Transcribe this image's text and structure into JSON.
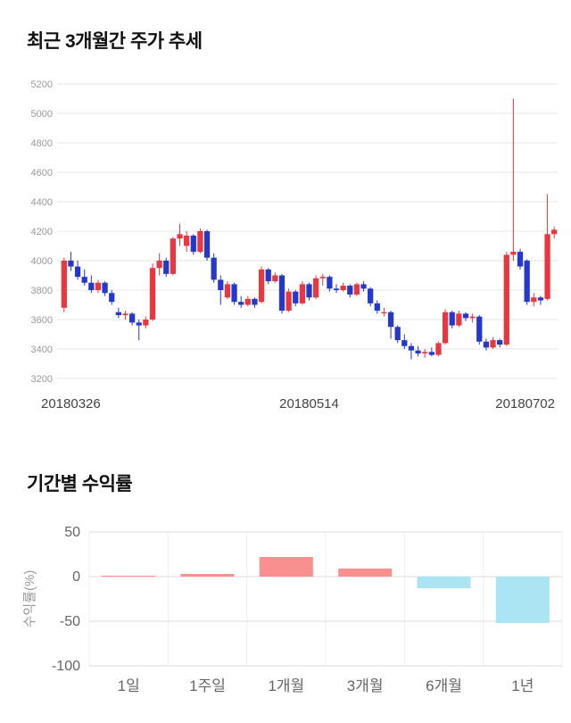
{
  "sections": {
    "price_trend": {
      "title": "최근 3개월간 주가 추세"
    },
    "returns": {
      "title": "기간별 수익률"
    }
  },
  "chart_data": [
    {
      "type": "candlestick",
      "title": "최근 3개월간 주가 추세",
      "ylim": [
        3200,
        5200
      ],
      "yticks": [
        3200,
        3400,
        3600,
        3800,
        4000,
        4200,
        4400,
        4600,
        4800,
        5000,
        5200
      ],
      "xtick_labels": [
        "20180326",
        "20180514",
        "20180702"
      ],
      "grid": "horizontal",
      "up_color": "#e8373f",
      "down_color": "#2439cb",
      "candles": [
        [
          3680,
          4020,
          3650,
          4000
        ],
        [
          4000,
          4060,
          3930,
          3960
        ],
        [
          3960,
          4000,
          3870,
          3890
        ],
        [
          3890,
          3940,
          3830,
          3850
        ],
        [
          3850,
          3900,
          3780,
          3800
        ],
        [
          3800,
          3870,
          3780,
          3850
        ],
        [
          3850,
          3860,
          3760,
          3780
        ],
        [
          3780,
          3800,
          3700,
          3720
        ],
        [
          3650,
          3680,
          3610,
          3630
        ],
        [
          3630,
          3660,
          3600,
          3640
        ],
        [
          3640,
          3650,
          3560,
          3580
        ],
        [
          3580,
          3600,
          3460,
          3560
        ],
        [
          3560,
          3620,
          3540,
          3600
        ],
        [
          3600,
          3980,
          3590,
          3950
        ],
        [
          3950,
          4050,
          3900,
          4000
        ],
        [
          4000,
          4020,
          3890,
          3910
        ],
        [
          3910,
          4160,
          3900,
          4150
        ],
        [
          4150,
          4250,
          4100,
          4180
        ],
        [
          4100,
          4200,
          4060,
          4170
        ],
        [
          4170,
          4180,
          4040,
          4060
        ],
        [
          4060,
          4220,
          4050,
          4200
        ],
        [
          4200,
          4210,
          4000,
          4020
        ],
        [
          4020,
          4050,
          3850,
          3870
        ],
        [
          3870,
          3900,
          3700,
          3800
        ],
        [
          3750,
          3860,
          3740,
          3840
        ],
        [
          3840,
          3850,
          3700,
          3720
        ],
        [
          3720,
          3760,
          3680,
          3700
        ],
        [
          3700,
          3760,
          3690,
          3740
        ],
        [
          3740,
          3750,
          3680,
          3700
        ],
        [
          3720,
          3960,
          3710,
          3940
        ],
        [
          3940,
          3950,
          3840,
          3860
        ],
        [
          3860,
          3920,
          3850,
          3900
        ],
        [
          3900,
          3910,
          3640,
          3660
        ],
        [
          3660,
          3810,
          3650,
          3790
        ],
        [
          3790,
          3800,
          3690,
          3710
        ],
        [
          3710,
          3860,
          3700,
          3840
        ],
        [
          3840,
          3850,
          3730,
          3750
        ],
        [
          3750,
          3900,
          3740,
          3880
        ],
        [
          3880,
          3910,
          3830,
          3890
        ],
        [
          3890,
          3900,
          3790,
          3810
        ],
        [
          3810,
          3840,
          3780,
          3800
        ],
        [
          3800,
          3850,
          3790,
          3830
        ],
        [
          3830,
          3840,
          3750,
          3770
        ],
        [
          3770,
          3850,
          3760,
          3840
        ],
        [
          3840,
          3860,
          3790,
          3810
        ],
        [
          3810,
          3820,
          3690,
          3710
        ],
        [
          3710,
          3730,
          3640,
          3660
        ],
        [
          3650,
          3680,
          3620,
          3650
        ],
        [
          3650,
          3660,
          3470,
          3550
        ],
        [
          3550,
          3560,
          3440,
          3460
        ],
        [
          3460,
          3500,
          3400,
          3420
        ],
        [
          3420,
          3440,
          3330,
          3390
        ],
        [
          3390,
          3420,
          3350,
          3370
        ],
        [
          3370,
          3400,
          3340,
          3380
        ],
        [
          3380,
          3410,
          3350,
          3360
        ],
        [
          3360,
          3450,
          3350,
          3440
        ],
        [
          3440,
          3670,
          3430,
          3650
        ],
        [
          3650,
          3660,
          3540,
          3560
        ],
        [
          3560,
          3660,
          3550,
          3640
        ],
        [
          3640,
          3650,
          3590,
          3610
        ],
        [
          3610,
          3640,
          3580,
          3620
        ],
        [
          3620,
          3630,
          3430,
          3450
        ],
        [
          3450,
          3470,
          3390,
          3410
        ],
        [
          3410,
          3480,
          3400,
          3460
        ],
        [
          3460,
          3470,
          3410,
          3430
        ],
        [
          3430,
          4060,
          3420,
          4040
        ],
        [
          4040,
          5100,
          4000,
          4060
        ],
        [
          4060,
          4080,
          3940,
          3960
        ],
        [
          4000,
          4010,
          3700,
          3720
        ],
        [
          3720,
          3780,
          3690,
          3750
        ],
        [
          3750,
          3760,
          3700,
          3730
        ],
        [
          3740,
          4450,
          3730,
          4180
        ],
        [
          4180,
          4230,
          4150,
          4210
        ]
      ]
    },
    {
      "type": "bar",
      "title": "기간별 수익률",
      "ylabel": "수익률(%)",
      "categories": [
        "1일",
        "1주일",
        "1개월",
        "3개월",
        "6개월",
        "1년"
      ],
      "values": [
        1,
        3,
        22,
        9,
        -13,
        -52
      ],
      "ylim": [
        -100,
        50
      ],
      "yticks": [
        50,
        0,
        -50,
        -100
      ],
      "grid": "on",
      "legend": "none",
      "positive_color": "#f9908f",
      "negative_color": "#abe4f2"
    }
  ]
}
